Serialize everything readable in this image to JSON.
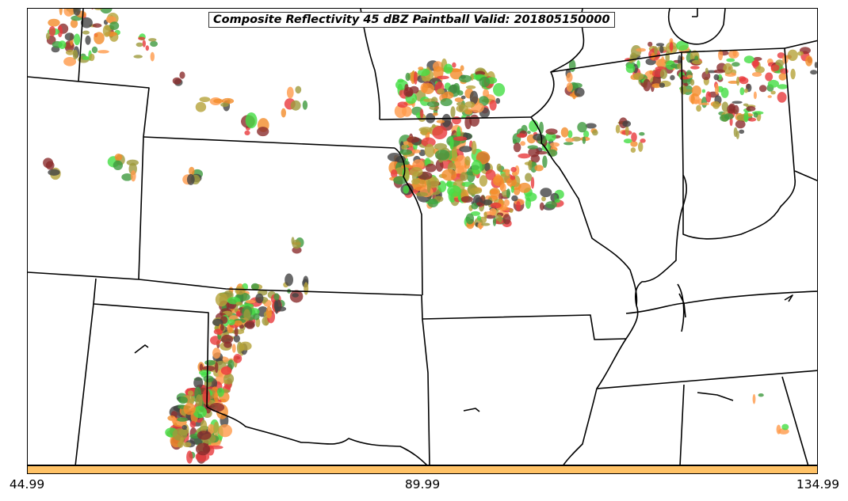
{
  "title": "Composite Reflectivity 45 dBZ Paintball Valid: 201805150000",
  "colorbar": {
    "color": "#FFC266",
    "tick_labels": [
      "44.99",
      "89.99",
      "134.99"
    ],
    "ticks": [
      44.99,
      89.99,
      134.99
    ]
  },
  "member_colors": [
    "#E8393C",
    "#F28C2A",
    "#9E9A3C",
    "#3F9A3F",
    "#8B2D2D",
    "#444444",
    "#44DD44",
    "#FF9A4A",
    "#B5A23A"
  ],
  "map": {
    "boundaries": "US state borders and coastlines, black lines",
    "projection": "central United States"
  }
}
